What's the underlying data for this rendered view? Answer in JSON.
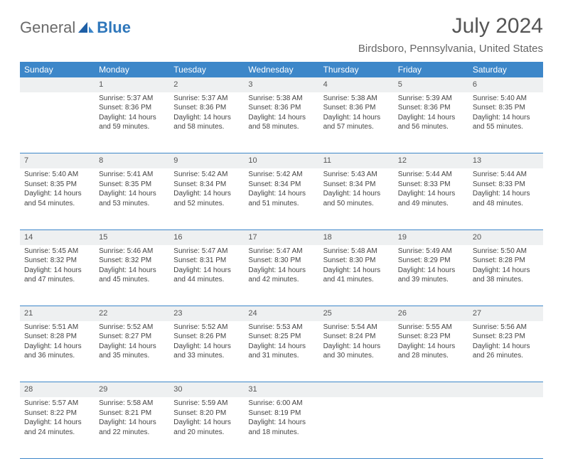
{
  "brand": {
    "part1": "General",
    "part2": "Blue"
  },
  "title": "July 2024",
  "subtitle": "Birdsboro, Pennsylvania, United States",
  "colors": {
    "header_bg": "#3d87c9",
    "header_text": "#ffffff",
    "daynum_bg": "#eef0f1",
    "border": "#3d87c9",
    "text": "#444444"
  },
  "weekdays": [
    "Sunday",
    "Monday",
    "Tuesday",
    "Wednesday",
    "Thursday",
    "Friday",
    "Saturday"
  ],
  "first_weekday_index": 1,
  "days": [
    {
      "n": 1,
      "sunrise": "5:37 AM",
      "sunset": "8:36 PM",
      "dl": "14 hours and 59 minutes."
    },
    {
      "n": 2,
      "sunrise": "5:37 AM",
      "sunset": "8:36 PM",
      "dl": "14 hours and 58 minutes."
    },
    {
      "n": 3,
      "sunrise": "5:38 AM",
      "sunset": "8:36 PM",
      "dl": "14 hours and 58 minutes."
    },
    {
      "n": 4,
      "sunrise": "5:38 AM",
      "sunset": "8:36 PM",
      "dl": "14 hours and 57 minutes."
    },
    {
      "n": 5,
      "sunrise": "5:39 AM",
      "sunset": "8:36 PM",
      "dl": "14 hours and 56 minutes."
    },
    {
      "n": 6,
      "sunrise": "5:40 AM",
      "sunset": "8:35 PM",
      "dl": "14 hours and 55 minutes."
    },
    {
      "n": 7,
      "sunrise": "5:40 AM",
      "sunset": "8:35 PM",
      "dl": "14 hours and 54 minutes."
    },
    {
      "n": 8,
      "sunrise": "5:41 AM",
      "sunset": "8:35 PM",
      "dl": "14 hours and 53 minutes."
    },
    {
      "n": 9,
      "sunrise": "5:42 AM",
      "sunset": "8:34 PM",
      "dl": "14 hours and 52 minutes."
    },
    {
      "n": 10,
      "sunrise": "5:42 AM",
      "sunset": "8:34 PM",
      "dl": "14 hours and 51 minutes."
    },
    {
      "n": 11,
      "sunrise": "5:43 AM",
      "sunset": "8:34 PM",
      "dl": "14 hours and 50 minutes."
    },
    {
      "n": 12,
      "sunrise": "5:44 AM",
      "sunset": "8:33 PM",
      "dl": "14 hours and 49 minutes."
    },
    {
      "n": 13,
      "sunrise": "5:44 AM",
      "sunset": "8:33 PM",
      "dl": "14 hours and 48 minutes."
    },
    {
      "n": 14,
      "sunrise": "5:45 AM",
      "sunset": "8:32 PM",
      "dl": "14 hours and 47 minutes."
    },
    {
      "n": 15,
      "sunrise": "5:46 AM",
      "sunset": "8:32 PM",
      "dl": "14 hours and 45 minutes."
    },
    {
      "n": 16,
      "sunrise": "5:47 AM",
      "sunset": "8:31 PM",
      "dl": "14 hours and 44 minutes."
    },
    {
      "n": 17,
      "sunrise": "5:47 AM",
      "sunset": "8:30 PM",
      "dl": "14 hours and 42 minutes."
    },
    {
      "n": 18,
      "sunrise": "5:48 AM",
      "sunset": "8:30 PM",
      "dl": "14 hours and 41 minutes."
    },
    {
      "n": 19,
      "sunrise": "5:49 AM",
      "sunset": "8:29 PM",
      "dl": "14 hours and 39 minutes."
    },
    {
      "n": 20,
      "sunrise": "5:50 AM",
      "sunset": "8:28 PM",
      "dl": "14 hours and 38 minutes."
    },
    {
      "n": 21,
      "sunrise": "5:51 AM",
      "sunset": "8:28 PM",
      "dl": "14 hours and 36 minutes."
    },
    {
      "n": 22,
      "sunrise": "5:52 AM",
      "sunset": "8:27 PM",
      "dl": "14 hours and 35 minutes."
    },
    {
      "n": 23,
      "sunrise": "5:52 AM",
      "sunset": "8:26 PM",
      "dl": "14 hours and 33 minutes."
    },
    {
      "n": 24,
      "sunrise": "5:53 AM",
      "sunset": "8:25 PM",
      "dl": "14 hours and 31 minutes."
    },
    {
      "n": 25,
      "sunrise": "5:54 AM",
      "sunset": "8:24 PM",
      "dl": "14 hours and 30 minutes."
    },
    {
      "n": 26,
      "sunrise": "5:55 AM",
      "sunset": "8:23 PM",
      "dl": "14 hours and 28 minutes."
    },
    {
      "n": 27,
      "sunrise": "5:56 AM",
      "sunset": "8:23 PM",
      "dl": "14 hours and 26 minutes."
    },
    {
      "n": 28,
      "sunrise": "5:57 AM",
      "sunset": "8:22 PM",
      "dl": "14 hours and 24 minutes."
    },
    {
      "n": 29,
      "sunrise": "5:58 AM",
      "sunset": "8:21 PM",
      "dl": "14 hours and 22 minutes."
    },
    {
      "n": 30,
      "sunrise": "5:59 AM",
      "sunset": "8:20 PM",
      "dl": "14 hours and 20 minutes."
    },
    {
      "n": 31,
      "sunrise": "6:00 AM",
      "sunset": "8:19 PM",
      "dl": "14 hours and 18 minutes."
    }
  ],
  "labels": {
    "sunrise": "Sunrise:",
    "sunset": "Sunset:",
    "daylight": "Daylight:"
  }
}
